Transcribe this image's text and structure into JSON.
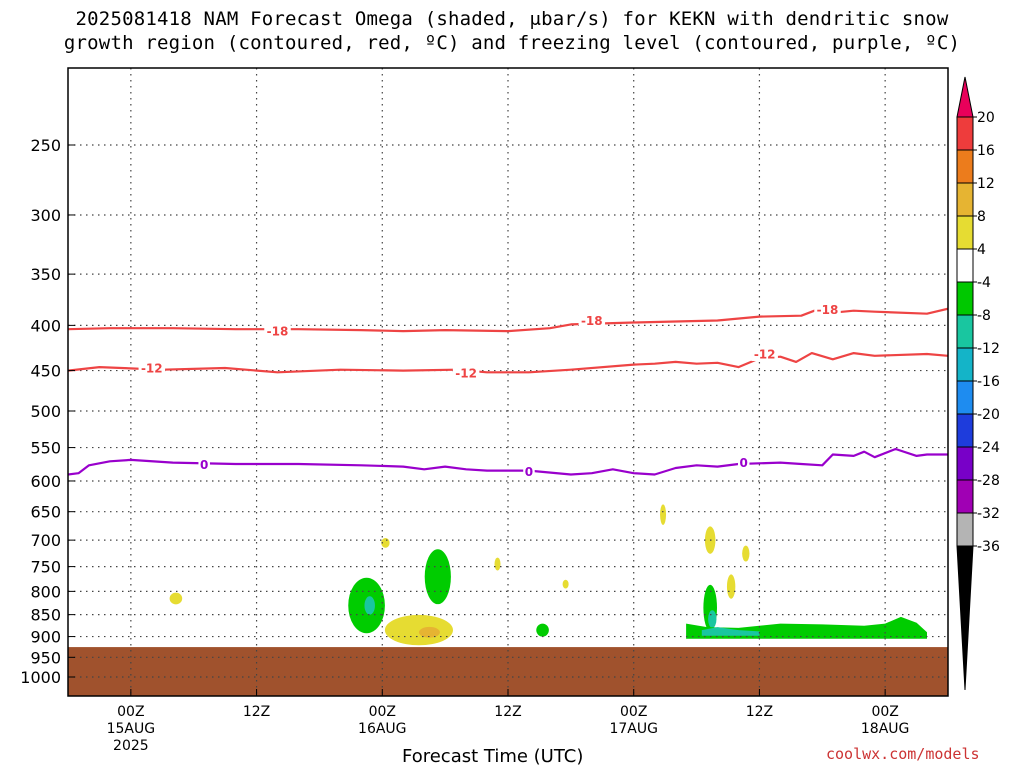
{
  "chart_data": {
    "type": "heatmap",
    "title_line1": "2025081418 NAM Forecast Omega (shaded, μbar/s) for KEKN with dendritic snow",
    "title_line2": "growth region (contoured, red, ºC) and freezing level (contoured, purple, ºC)",
    "xlabel": "Forecast Time (UTC)",
    "ylabel": "",
    "y_axis": {
      "scale": "pressure",
      "range": [
        1050,
        200
      ],
      "ticks": [
        250,
        300,
        350,
        400,
        450,
        500,
        550,
        600,
        650,
        700,
        750,
        800,
        850,
        900,
        950,
        1000
      ]
    },
    "x_axis": {
      "range_hours": [
        -6,
        78
      ],
      "ticks": [
        {
          "hour": 0,
          "l1": "00Z",
          "l2": "15AUG",
          "l3": "2025"
        },
        {
          "hour": 12,
          "l1": "12Z",
          "l2": "",
          "l3": ""
        },
        {
          "hour": 24,
          "l1": "00Z",
          "l2": "16AUG",
          "l3": ""
        },
        {
          "hour": 36,
          "l1": "12Z",
          "l2": "",
          "l3": ""
        },
        {
          "hour": 48,
          "l1": "00Z",
          "l2": "17AUG",
          "l3": ""
        },
        {
          "hour": 60,
          "l1": "12Z",
          "l2": "",
          "l3": ""
        },
        {
          "hour": 72,
          "l1": "00Z",
          "l2": "18AUG",
          "l3": ""
        }
      ]
    },
    "grid": true,
    "ground_pressure": 925,
    "colors": {
      "ground": "#a0522d",
      "dgz_contour": "#ee4444",
      "freezing_contour": "#9900cc"
    },
    "contours": [
      {
        "name": "-18",
        "color": "#ee4444",
        "points": [
          [
            -6,
            404
          ],
          [
            -2,
            403
          ],
          [
            4,
            403
          ],
          [
            10,
            404
          ],
          [
            16,
            404
          ],
          [
            22,
            405
          ],
          [
            26,
            406
          ],
          [
            30,
            405
          ],
          [
            36,
            406
          ],
          [
            40,
            403
          ],
          [
            42,
            399
          ],
          [
            48,
            397
          ],
          [
            52,
            396
          ],
          [
            56,
            395
          ],
          [
            60,
            391
          ],
          [
            64,
            390
          ],
          [
            65.5,
            384
          ],
          [
            67,
            387
          ],
          [
            69,
            385
          ],
          [
            71,
            386
          ],
          [
            76,
            388
          ],
          [
            78,
            383
          ]
        ],
        "labels": [
          {
            "label": "-18",
            "hour": 14,
            "p": 406
          },
          {
            "label": "-18",
            "hour": 44,
            "p": 395
          },
          {
            "label": "-18",
            "hour": 66.5,
            "p": 384
          }
        ]
      },
      {
        "name": "-12",
        "color": "#ee4444",
        "points": [
          [
            -6,
            450
          ],
          [
            -3,
            446
          ],
          [
            3,
            449
          ],
          [
            9,
            447
          ],
          [
            14,
            452
          ],
          [
            20,
            449
          ],
          [
            26,
            450
          ],
          [
            31,
            449
          ],
          [
            34,
            452
          ],
          [
            38,
            452
          ],
          [
            42,
            449
          ],
          [
            48,
            443
          ],
          [
            50,
            442
          ],
          [
            52,
            440
          ],
          [
            54,
            442
          ],
          [
            56,
            441
          ],
          [
            58,
            446
          ],
          [
            60,
            436
          ],
          [
            62,
            434
          ],
          [
            63.5,
            440
          ],
          [
            65,
            430
          ],
          [
            67,
            437
          ],
          [
            69,
            430
          ],
          [
            71,
            433
          ],
          [
            76,
            431
          ],
          [
            78,
            433
          ]
        ],
        "labels": [
          {
            "label": "-12",
            "hour": 2,
            "p": 447
          },
          {
            "label": "-12",
            "hour": 32,
            "p": 453
          },
          {
            "label": "-12",
            "hour": 60.5,
            "p": 431
          }
        ]
      },
      {
        "name": "0",
        "color": "#9900cc",
        "points": [
          [
            -6,
            590
          ],
          [
            -5,
            588
          ],
          [
            -4,
            576
          ],
          [
            -2,
            570
          ],
          [
            0,
            568
          ],
          [
            4,
            572
          ],
          [
            10,
            574
          ],
          [
            16,
            574
          ],
          [
            22,
            576
          ],
          [
            26,
            578
          ],
          [
            28,
            582
          ],
          [
            30,
            578
          ],
          [
            32,
            582
          ],
          [
            34,
            584
          ],
          [
            38,
            584
          ],
          [
            42,
            590
          ],
          [
            44,
            588
          ],
          [
            46,
            582
          ],
          [
            48,
            588
          ],
          [
            50,
            590
          ],
          [
            52,
            580
          ],
          [
            54,
            576
          ],
          [
            56,
            578
          ],
          [
            58,
            574
          ],
          [
            62,
            572
          ],
          [
            64,
            574
          ],
          [
            66,
            576
          ],
          [
            67,
            560
          ],
          [
            69,
            562
          ],
          [
            70,
            556
          ],
          [
            71,
            564
          ],
          [
            73,
            552
          ],
          [
            75,
            562
          ],
          [
            76,
            560
          ],
          [
            78,
            560
          ]
        ],
        "labels": [
          {
            "label": "0",
            "hour": 7,
            "p": 575
          },
          {
            "label": "0",
            "hour": 38,
            "p": 585
          },
          {
            "label": "0",
            "hour": 58.5,
            "p": 572
          }
        ]
      }
    ],
    "shaded_regions": [
      {
        "range": "-8 to -4",
        "color": "#00cc00",
        "center_hour": 22.5,
        "center_p": 830,
        "width_hours": 3.5,
        "height_mb": 120
      },
      {
        "range": "-12 to -8",
        "color": "#19c6a0",
        "center_hour": 22.8,
        "center_p": 830,
        "width_hours": 1.0,
        "height_mb": 40
      },
      {
        "range": "-8 to -4",
        "color": "#00cc00",
        "center_hour": 29.3,
        "center_p": 770,
        "width_hours": 2.5,
        "height_mb": 110
      },
      {
        "range": "-8 to -4",
        "color": "#00cc00",
        "center_hour": 39.3,
        "center_p": 885,
        "width_hours": 1.2,
        "height_mb": 30
      },
      {
        "range": "4 to 8",
        "color": "#e6dc32",
        "center_hour": 27.5,
        "center_p": 885,
        "width_hours": 6.5,
        "height_mb": 70
      },
      {
        "range": "8 to 12",
        "color": "#e6b432",
        "center_hour": 28.5,
        "center_p": 890,
        "width_hours": 2.0,
        "height_mb": 25
      },
      {
        "range": "4 to 8",
        "color": "#e6dc32",
        "center_hour": 4.3,
        "center_p": 815,
        "width_hours": 1.2,
        "height_mb": 25
      },
      {
        "range": "4 to 8",
        "color": "#e6dc32",
        "center_hour": 24.3,
        "center_p": 705,
        "width_hours": 0.8,
        "height_mb": 18
      },
      {
        "range": "4 to 8",
        "color": "#e6dc32",
        "center_hour": 35.0,
        "center_p": 745,
        "width_hours": 0.5,
        "height_mb": 25
      },
      {
        "range": "4 to 8",
        "color": "#e6dc32",
        "center_hour": 41.5,
        "center_p": 785,
        "width_hours": 0.5,
        "height_mb": 18
      },
      {
        "range": "4 to 8",
        "color": "#e6dc32",
        "center_hour": 50.8,
        "center_p": 655,
        "width_hours": 0.3,
        "height_mb": 35
      },
      {
        "range": "4 to 8",
        "color": "#e6dc32",
        "center_hour": 55.3,
        "center_p": 700,
        "width_hours": 1.0,
        "height_mb": 50
      },
      {
        "range": "4 to 8",
        "color": "#e6dc32",
        "center_hour": 57.3,
        "center_p": 790,
        "width_hours": 0.8,
        "height_mb": 50
      },
      {
        "range": "4 to 8",
        "color": "#e6dc32",
        "center_hour": 58.7,
        "center_p": 725,
        "width_hours": 0.7,
        "height_mb": 30
      },
      {
        "range": "-8 to -4",
        "color": "#00cc00",
        "center_hour": 55.3,
        "center_p": 835,
        "width_hours": 1.3,
        "height_mb": 100
      },
      {
        "range": "-12 to -8",
        "color": "#19c6a0",
        "center_hour": 55.5,
        "center_p": 860,
        "width_hours": 0.8,
        "height_mb": 40
      }
    ],
    "shaded_bands": [
      {
        "range": "-8 to -4",
        "color": "#00cc00",
        "points": [
          [
            53,
            870
          ],
          [
            55,
            878
          ],
          [
            58,
            880
          ],
          [
            62,
            870
          ],
          [
            66,
            872
          ],
          [
            70,
            875
          ],
          [
            72,
            870
          ],
          [
            73.5,
            855
          ],
          [
            75,
            868
          ],
          [
            76,
            890
          ],
          [
            76,
            905
          ],
          [
            53,
            905
          ]
        ]
      },
      {
        "range": "-12 to -8",
        "color": "#19c6a0",
        "points": [
          [
            54.5,
            885
          ],
          [
            56,
            878
          ],
          [
            58,
            885
          ],
          [
            60,
            888
          ],
          [
            60,
            898
          ],
          [
            54.5,
            898
          ]
        ]
      }
    ],
    "colorbar": {
      "ticks": [
        "20",
        "16",
        "12",
        "8",
        "4",
        "-4",
        "-8",
        "-12",
        "-16",
        "-20",
        "-24",
        "-28",
        "-32",
        "-36"
      ],
      "colors": [
        "#e8005a",
        "#ee3c3c",
        "#ec7c1c",
        "#e6b432",
        "#e6dc32",
        "#ffffff",
        "#00c800",
        "#19c6a0",
        "#14b4c8",
        "#1e8cf0",
        "#1e3cdc",
        "#7800c8",
        "#a000b4",
        "#b4b4b4",
        "#000000"
      ]
    }
  },
  "credit": "coolwx.com/models"
}
